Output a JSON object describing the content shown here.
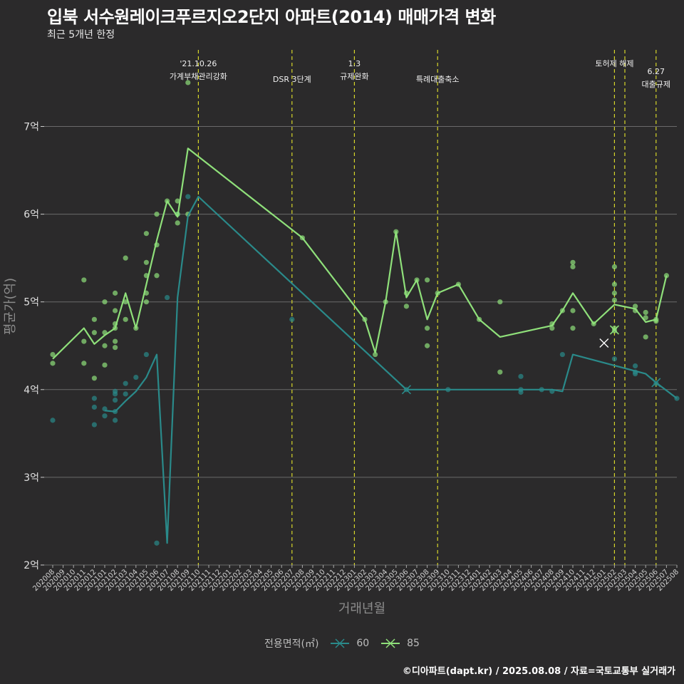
{
  "title": "입북 서수원레이크푸르지오2단지 아파트(2014) 매매가격 변화",
  "subtitle": "최근 5개년 한정",
  "footer": "©디아파트(dapt.kr) / 2025.08.08 / 자료=국토교통부 실거래가",
  "colors": {
    "background": "#2b2a2b",
    "grid": "#6a6a6a",
    "series60": "#2a8a8a",
    "series85": "#8fe07a",
    "vline": "#d6d62a"
  },
  "chart_data": {
    "type": "line",
    "xlabel": "거래년월",
    "ylabel": "평균가(억)",
    "ylim": [
      2,
      7.9
    ],
    "yticks": [
      2,
      3,
      4,
      5,
      6,
      7
    ],
    "ytick_labels": [
      "2억",
      "3억",
      "4억",
      "5억",
      "6억",
      "7억"
    ],
    "grid": true,
    "legend_position": "bottom",
    "legend_title": "전용면적(㎡)",
    "categories": [
      "202008",
      "202009",
      "202010",
      "202011",
      "202012",
      "202101",
      "202102",
      "202103",
      "202104",
      "202105",
      "202106",
      "202107",
      "202108",
      "202109",
      "202110",
      "202111",
      "202112",
      "202201",
      "202202",
      "202203",
      "202204",
      "202205",
      "202206",
      "202207",
      "202208",
      "202209",
      "202210",
      "202211",
      "202212",
      "202301",
      "202302",
      "202303",
      "202304",
      "202305",
      "202306",
      "202307",
      "202308",
      "202309",
      "202310",
      "202311",
      "202312",
      "202401",
      "202402",
      "202403",
      "202404",
      "202405",
      "202406",
      "202407",
      "202408",
      "202409",
      "202410",
      "202411",
      "202412",
      "202501",
      "202502",
      "202503",
      "202504",
      "202505",
      "202506",
      "202507",
      "202508"
    ],
    "series": [
      {
        "name": "60",
        "line": [
          [
            "202101",
            3.76
          ],
          [
            "202102",
            3.75
          ],
          [
            "202103",
            3.87
          ],
          [
            "202104",
            3.98
          ],
          [
            "202105",
            4.14
          ],
          [
            "202106",
            4.4
          ],
          [
            "202107",
            2.25
          ],
          [
            "202108",
            5.05
          ],
          [
            "202109",
            5.98
          ],
          [
            "202110",
            6.2
          ],
          [
            "202306",
            4.0
          ],
          [
            "202310",
            4.0
          ],
          [
            "202408",
            4.0
          ],
          [
            "202409",
            3.98
          ],
          [
            "202410",
            4.4
          ],
          [
            "202505",
            4.18
          ],
          [
            "202506",
            4.08
          ],
          [
            "202508",
            3.9
          ]
        ],
        "points": [
          [
            "202008",
            3.65
          ],
          [
            "202012",
            3.9
          ],
          [
            "202012",
            3.8
          ],
          [
            "202012",
            3.6
          ],
          [
            "202101",
            3.78
          ],
          [
            "202101",
            3.7
          ],
          [
            "202102",
            3.98
          ],
          [
            "202102",
            3.95
          ],
          [
            "202102",
            3.75
          ],
          [
            "202102",
            3.65
          ],
          [
            "202102",
            3.88
          ],
          [
            "202103",
            4.07
          ],
          [
            "202103",
            3.95
          ],
          [
            "202104",
            4.14
          ],
          [
            "202105",
            4.4
          ],
          [
            "202106",
            2.25
          ],
          [
            "202107",
            5.05
          ],
          [
            "202108",
            6.0
          ],
          [
            "202109",
            6.2
          ],
          [
            "202207",
            4.8
          ],
          [
            "202306",
            4.0
          ],
          [
            "202310",
            4.0
          ],
          [
            "202405",
            4.15
          ],
          [
            "202405",
            4.0
          ],
          [
            "202405",
            3.97
          ],
          [
            "202407",
            4.0
          ],
          [
            "202408",
            3.98
          ],
          [
            "202409",
            4.4
          ],
          [
            "202502",
            4.35
          ],
          [
            "202504",
            4.27
          ],
          [
            "202504",
            4.2
          ],
          [
            "202504",
            4.18
          ],
          [
            "202506",
            4.07
          ],
          [
            "202508",
            3.9
          ]
        ],
        "cross_marks": [
          [
            "202306",
            4.0
          ],
          [
            "202506",
            4.08
          ]
        ]
      },
      {
        "name": "85",
        "line": [
          [
            "202008",
            4.35
          ],
          [
            "202011",
            4.7
          ],
          [
            "202012",
            4.52
          ],
          [
            "202101",
            4.62
          ],
          [
            "202102",
            4.7
          ],
          [
            "202103",
            5.1
          ],
          [
            "202104",
            4.7
          ],
          [
            "202106",
            5.7
          ],
          [
            "202107",
            6.15
          ],
          [
            "202108",
            5.97
          ],
          [
            "202109",
            6.75
          ],
          [
            "202208",
            5.73
          ],
          [
            "202302",
            4.8
          ],
          [
            "202303",
            4.42
          ],
          [
            "202304",
            5.0
          ],
          [
            "202305",
            5.8
          ],
          [
            "202306",
            5.05
          ],
          [
            "202307",
            5.25
          ],
          [
            "202308",
            4.8
          ],
          [
            "202309",
            5.1
          ],
          [
            "202311",
            5.2
          ],
          [
            "202401",
            4.8
          ],
          [
            "202403",
            4.6
          ],
          [
            "202408",
            4.73
          ],
          [
            "202409",
            4.9
          ],
          [
            "202410",
            5.1
          ],
          [
            "202412",
            4.75
          ],
          [
            "202502",
            4.97
          ],
          [
            "202504",
            4.92
          ],
          [
            "202505",
            4.77
          ],
          [
            "202506",
            4.8
          ],
          [
            "202507",
            5.3
          ]
        ],
        "points": [
          [
            "202008",
            4.4
          ],
          [
            "202008",
            4.3
          ],
          [
            "202011",
            5.25
          ],
          [
            "202011",
            4.55
          ],
          [
            "202011",
            4.3
          ],
          [
            "202012",
            4.8
          ],
          [
            "202012",
            4.65
          ],
          [
            "202012",
            4.13
          ],
          [
            "202101",
            5.0
          ],
          [
            "202101",
            4.65
          ],
          [
            "202101",
            4.5
          ],
          [
            "202101",
            4.28
          ],
          [
            "202102",
            5.1
          ],
          [
            "202102",
            4.9
          ],
          [
            "202102",
            4.75
          ],
          [
            "202102",
            4.7
          ],
          [
            "202102",
            4.55
          ],
          [
            "202102",
            4.48
          ],
          [
            "202103",
            5.5
          ],
          [
            "202103",
            5.0
          ],
          [
            "202103",
            4.8
          ],
          [
            "202104",
            4.7
          ],
          [
            "202105",
            5.78
          ],
          [
            "202105",
            5.45
          ],
          [
            "202105",
            5.3
          ],
          [
            "202105",
            5.1
          ],
          [
            "202105",
            5.0
          ],
          [
            "202106",
            6.0
          ],
          [
            "202106",
            5.65
          ],
          [
            "202106",
            5.3
          ],
          [
            "202107",
            6.15
          ],
          [
            "202108",
            6.15
          ],
          [
            "202108",
            6.0
          ],
          [
            "202108",
            5.9
          ],
          [
            "202109",
            7.5
          ],
          [
            "202109",
            6.0
          ],
          [
            "202208",
            5.73
          ],
          [
            "202302",
            4.8
          ],
          [
            "202303",
            4.4
          ],
          [
            "202304",
            5.0
          ],
          [
            "202305",
            5.8
          ],
          [
            "202306",
            5.1
          ],
          [
            "202306",
            4.95
          ],
          [
            "202307",
            5.25
          ],
          [
            "202308",
            5.25
          ],
          [
            "202308",
            4.7
          ],
          [
            "202308",
            4.5
          ],
          [
            "202309",
            5.1
          ],
          [
            "202311",
            5.2
          ],
          [
            "202401",
            4.8
          ],
          [
            "202403",
            5.0
          ],
          [
            "202403",
            4.2
          ],
          [
            "202408",
            4.75
          ],
          [
            "202408",
            4.7
          ],
          [
            "202409",
            4.9
          ],
          [
            "202410",
            5.45
          ],
          [
            "202410",
            5.4
          ],
          [
            "202410",
            4.9
          ],
          [
            "202410",
            4.7
          ],
          [
            "202412",
            4.75
          ],
          [
            "202502",
            5.4
          ],
          [
            "202502",
            5.2
          ],
          [
            "202502",
            5.1
          ],
          [
            "202502",
            5.02
          ],
          [
            "202502",
            4.7
          ],
          [
            "202502",
            4.67
          ],
          [
            "202504",
            4.95
          ],
          [
            "202504",
            4.9
          ],
          [
            "202505",
            4.88
          ],
          [
            "202505",
            4.82
          ],
          [
            "202505",
            4.6
          ],
          [
            "202506",
            4.8
          ],
          [
            "202506",
            4.78
          ],
          [
            "202507",
            5.3
          ]
        ],
        "cross_marks": [
          [
            "202502",
            4.68
          ]
        ]
      }
    ],
    "extra_cross_marks": [
      [
        "202501",
        4.53
      ]
    ],
    "annotations": [
      {
        "x": "202110",
        "lines": [
          "'21.10.26",
          "가계부채관리강화"
        ],
        "level": 0
      },
      {
        "x": "202207",
        "lines": [
          "DSR 3단계"
        ],
        "level": 1
      },
      {
        "x": "202301",
        "lines": [
          "1.3",
          "규제완화"
        ],
        "level": 0
      },
      {
        "x": "202309",
        "lines": [
          "특례대출축소"
        ],
        "level": 1
      },
      {
        "x": "202502",
        "lines": [
          "토허제 해제"
        ],
        "level": 0
      },
      {
        "x": "202503",
        "lines": [],
        "level": 0
      },
      {
        "x": "202506",
        "lines": [
          "6.27",
          "대출규제"
        ],
        "level": 0.5
      }
    ]
  }
}
